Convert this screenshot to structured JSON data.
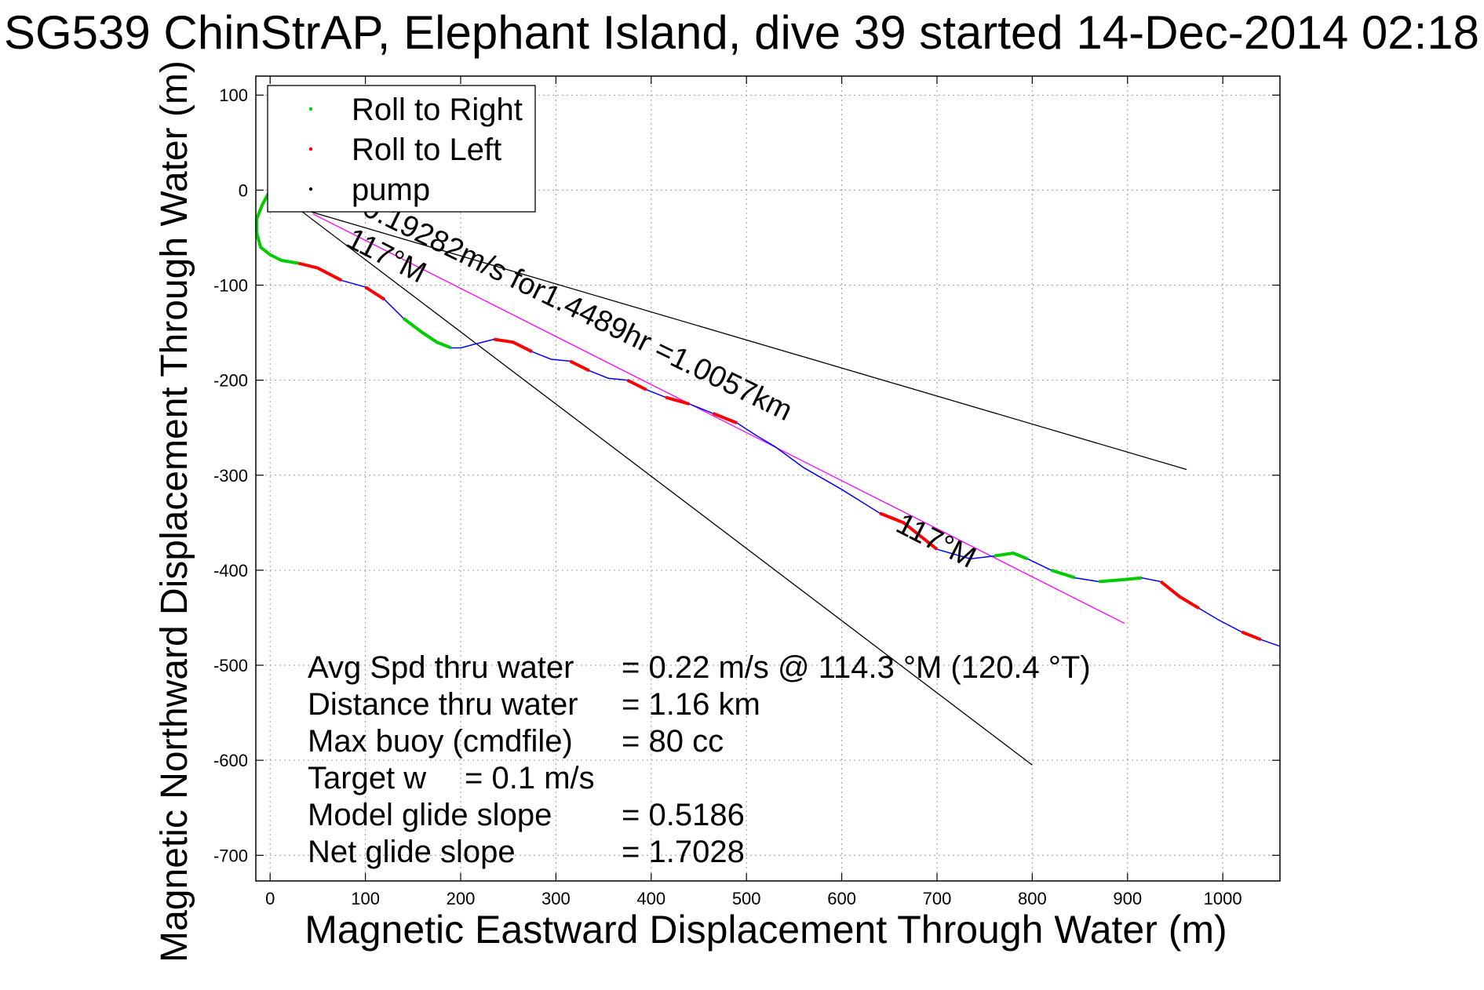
{
  "chart_data": {
    "type": "line",
    "title": "SG539 ChinStrAP, Elephant Island, dive 39 started 14-Dec-2014 02:18",
    "xlabel": "Magnetic Eastward Displacement Through Water (m)",
    "ylabel": "Magnetic Northward Displacement Through Water (m)",
    "xlim": [
      -15,
      1060
    ],
    "ylim": [
      -727,
      120
    ],
    "xticks": [
      0,
      100,
      200,
      300,
      400,
      500,
      600,
      700,
      800,
      900,
      1000
    ],
    "yticks": [
      100,
      0,
      -100,
      -200,
      -300,
      -400,
      -500,
      -600,
      -700
    ],
    "grid": true,
    "legend": {
      "placement": "top-left",
      "entries": [
        {
          "label": "Roll to Right",
          "color": "#00cc00"
        },
        {
          "label": "Roll to Left",
          "color": "#ff0000"
        },
        {
          "label": "pump",
          "color": "#000000"
        }
      ]
    },
    "track": {
      "color": "#0000ff",
      "x": [
        0,
        -8,
        -14,
        -14,
        -10,
        0,
        12,
        30,
        50,
        75,
        100,
        120,
        140,
        160,
        175,
        190,
        200,
        215,
        235,
        255,
        275,
        295,
        315,
        335,
        355,
        375,
        395,
        415,
        440,
        465,
        490,
        510,
        530,
        560,
        600,
        640,
        665,
        700,
        735,
        760,
        780,
        795,
        820,
        845,
        870,
        895,
        915,
        935,
        955,
        975,
        995,
        1020,
        1040,
        1060
      ],
      "y": [
        0,
        -15,
        -30,
        -45,
        -60,
        -68,
        -74,
        -77,
        -82,
        -95,
        -102,
        -115,
        -135,
        -150,
        -160,
        -166,
        -166,
        -162,
        -157,
        -160,
        -170,
        -178,
        -180,
        -190,
        -198,
        -200,
        -210,
        -218,
        -225,
        -235,
        -245,
        -258,
        -270,
        -292,
        -315,
        -340,
        -350,
        -378,
        -388,
        -385,
        -382,
        -388,
        -400,
        -408,
        -412,
        -410,
        -408,
        -412,
        -428,
        -440,
        -452,
        -465,
        -473,
        -480
      ]
    },
    "roll_right_segments": [
      [
        0,
        7
      ],
      [
        12,
        15
      ],
      [
        39,
        41
      ],
      [
        42,
        43
      ],
      [
        44,
        46
      ]
    ],
    "roll_left_segments": [
      [
        7,
        9
      ],
      [
        10,
        11
      ],
      [
        18,
        20
      ],
      [
        22,
        23
      ],
      [
        25,
        26
      ],
      [
        27,
        28
      ],
      [
        29,
        30
      ],
      [
        35,
        37
      ],
      [
        47,
        49
      ],
      [
        51,
        52
      ]
    ],
    "reference_lines": [
      {
        "x": [
          30,
          800
        ],
        "y": [
          -20,
          -605
        ],
        "color": "#000000"
      },
      {
        "x": [
          40,
          962
        ],
        "y": [
          -22,
          -294
        ],
        "color": "#000000"
      },
      {
        "x": [
          45,
          897
        ],
        "y": [
          -25,
          -456
        ],
        "color": "#ff00ff"
      }
    ],
    "annotations": [
      {
        "text": "0.19282m/s for1.4489hr =1.0057km",
        "x": 95,
        "y": -25,
        "angle": 26
      },
      {
        "text": "117°M",
        "x": 78,
        "y": -58,
        "angle": 27
      },
      {
        "text": "117°M",
        "x": 655,
        "y": -358,
        "angle": 27
      }
    ],
    "stats": [
      {
        "label": "Avg Spd thru water",
        "value": "=  0.22 m/s @ 114.3 °M (120.4 °T)"
      },
      {
        "label": "Distance thru water",
        "value": "=  1.16 km"
      },
      {
        "label": "Max buoy (cmdfile)",
        "value": "= 80 cc"
      },
      {
        "label": "Target w",
        "value": "= 0.1 m/s"
      },
      {
        "label": "Model glide slope",
        "value": "= 0.5186"
      },
      {
        "label": "Net glide slope",
        "value": "= 1.7028"
      }
    ]
  }
}
